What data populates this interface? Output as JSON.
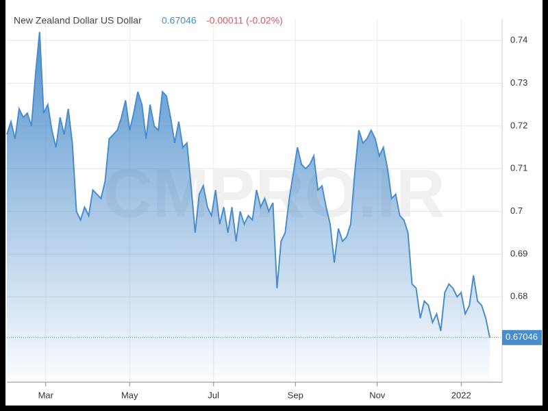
{
  "chart_data": {
    "type": "area",
    "title": "New Zealand Dollar US Dollar",
    "last": 0.67046,
    "change": "-0.00011 (-0.02%)",
    "watermark": "CMPRO.IR",
    "color": "#4a8ccb",
    "grid": true,
    "values": [
      0.718,
      0.721,
      0.717,
      0.724,
      0.722,
      0.723,
      0.72,
      0.732,
      0.742,
      0.723,
      0.725,
      0.719,
      0.715,
      0.722,
      0.718,
      0.724,
      0.716,
      0.7,
      0.698,
      0.701,
      0.699,
      0.705,
      0.704,
      0.703,
      0.707,
      0.717,
      0.718,
      0.719,
      0.722,
      0.726,
      0.719,
      0.723,
      0.728,
      0.725,
      0.717,
      0.725,
      0.72,
      0.719,
      0.728,
      0.727,
      0.722,
      0.716,
      0.721,
      0.715,
      0.716,
      0.706,
      0.695,
      0.704,
      0.706,
      0.701,
      0.699,
      0.705,
      0.697,
      0.701,
      0.695,
      0.701,
      0.693,
      0.7,
      0.697,
      0.699,
      0.698,
      0.705,
      0.701,
      0.703,
      0.7,
      0.702,
      0.682,
      0.693,
      0.695,
      0.703,
      0.709,
      0.715,
      0.711,
      0.71,
      0.711,
      0.713,
      0.705,
      0.706,
      0.701,
      0.697,
      0.688,
      0.696,
      0.693,
      0.694,
      0.697,
      0.709,
      0.719,
      0.716,
      0.717,
      0.719,
      0.717,
      0.713,
      0.715,
      0.71,
      0.703,
      0.704,
      0.699,
      0.698,
      0.695,
      0.683,
      0.682,
      0.675,
      0.679,
      0.678,
      0.674,
      0.676,
      0.672,
      0.681,
      0.683,
      0.682,
      0.68,
      0.681,
      0.676,
      0.678,
      0.685,
      0.679,
      0.678,
      0.675,
      0.67046
    ],
    "xlim": [
      0,
      121
    ],
    "xticks": [
      {
        "value": 9.5,
        "label": "Mar"
      },
      {
        "value": 30,
        "label": "May"
      },
      {
        "value": 50.5,
        "label": "Jul"
      },
      {
        "value": 70.5,
        "label": "Sep"
      },
      {
        "value": 90.5,
        "label": "Nov"
      },
      {
        "value": 111,
        "label": "2022"
      }
    ],
    "ylim": [
      0.66,
      0.745
    ],
    "yticks": [
      0.68,
      0.69,
      0.7,
      0.71,
      0.72,
      0.73,
      0.74
    ]
  }
}
